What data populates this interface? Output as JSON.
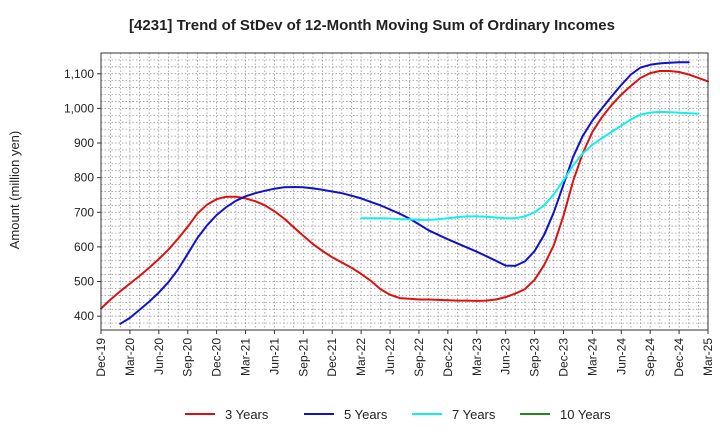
{
  "chart_data": {
    "type": "line",
    "title": "[4231]  Trend of StDev of 12-Month Moving Sum of Ordinary Incomes",
    "xlabel": "",
    "ylabel": "Amount (million yen)",
    "ylim": [
      360,
      1160
    ],
    "yticks": [
      400,
      500,
      600,
      700,
      800,
      900,
      1000,
      1100
    ],
    "ytick_labels": [
      "400",
      "500",
      "600",
      "700",
      "800",
      "900",
      "1,000",
      "1,100"
    ],
    "xticks": [
      "Dec-19",
      "Mar-20",
      "Jun-20",
      "Sep-20",
      "Dec-20",
      "Mar-21",
      "Jun-21",
      "Sep-21",
      "Dec-21",
      "Mar-22",
      "Jun-22",
      "Sep-22",
      "Dec-22",
      "Mar-23",
      "Jun-23",
      "Sep-23",
      "Dec-23",
      "Mar-24",
      "Jun-24",
      "Sep-24",
      "Dec-24",
      "Mar-25"
    ],
    "x_count_months": 63,
    "grid": true,
    "legend_position": "bottom",
    "series": [
      {
        "name": "3 Years",
        "color": "#dd1111",
        "points": [
          [
            0,
            422
          ],
          [
            1,
            448
          ],
          [
            2,
            472
          ],
          [
            3,
            494
          ],
          [
            4,
            516
          ],
          [
            5,
            540
          ],
          [
            6,
            565
          ],
          [
            7,
            592
          ],
          [
            8,
            624
          ],
          [
            9,
            658
          ],
          [
            10,
            696
          ],
          [
            11,
            722
          ],
          [
            12,
            738
          ],
          [
            13,
            745
          ],
          [
            14,
            745
          ],
          [
            15,
            740
          ],
          [
            16,
            732
          ],
          [
            17,
            720
          ],
          [
            18,
            703
          ],
          [
            19,
            682
          ],
          [
            20,
            657
          ],
          [
            21,
            632
          ],
          [
            22,
            608
          ],
          [
            23,
            588
          ],
          [
            24,
            570
          ],
          [
            25,
            555
          ],
          [
            26,
            540
          ],
          [
            27,
            522
          ],
          [
            28,
            502
          ],
          [
            29,
            478
          ],
          [
            30,
            462
          ],
          [
            31,
            452
          ],
          [
            32,
            450
          ],
          [
            33,
            448
          ],
          [
            34,
            448
          ],
          [
            35,
            447
          ],
          [
            36,
            446
          ],
          [
            37,
            445
          ],
          [
            38,
            445
          ],
          [
            39,
            444
          ],
          [
            40,
            445
          ],
          [
            41,
            448
          ],
          [
            42,
            455
          ],
          [
            43,
            465
          ],
          [
            44,
            478
          ],
          [
            45,
            505
          ],
          [
            46,
            548
          ],
          [
            47,
            605
          ],
          [
            48,
            690
          ],
          [
            49,
            790
          ],
          [
            50,
            870
          ],
          [
            51,
            932
          ],
          [
            52,
            975
          ],
          [
            53,
            1010
          ],
          [
            54,
            1040
          ],
          [
            55,
            1065
          ],
          [
            56,
            1088
          ],
          [
            57,
            1102
          ],
          [
            58,
            1108
          ],
          [
            59,
            1108
          ],
          [
            60,
            1105
          ],
          [
            61,
            1098
          ],
          [
            62,
            1088
          ],
          [
            63,
            1078
          ]
        ]
      },
      {
        "name": "5 Years",
        "color": "#1111cc",
        "points": [
          [
            2,
            378
          ],
          [
            3,
            395
          ],
          [
            4,
            418
          ],
          [
            5,
            442
          ],
          [
            6,
            468
          ],
          [
            7,
            498
          ],
          [
            8,
            535
          ],
          [
            9,
            580
          ],
          [
            10,
            625
          ],
          [
            11,
            662
          ],
          [
            12,
            692
          ],
          [
            13,
            715
          ],
          [
            14,
            733
          ],
          [
            15,
            746
          ],
          [
            16,
            755
          ],
          [
            17,
            762
          ],
          [
            18,
            768
          ],
          [
            19,
            772
          ],
          [
            20,
            773
          ],
          [
            21,
            772
          ],
          [
            22,
            769
          ],
          [
            23,
            765
          ],
          [
            24,
            760
          ],
          [
            25,
            755
          ],
          [
            26,
            748
          ],
          [
            27,
            740
          ],
          [
            28,
            730
          ],
          [
            29,
            720
          ],
          [
            30,
            708
          ],
          [
            31,
            696
          ],
          [
            32,
            682
          ],
          [
            33,
            665
          ],
          [
            34,
            648
          ],
          [
            35,
            635
          ],
          [
            36,
            622
          ],
          [
            37,
            610
          ],
          [
            38,
            598
          ],
          [
            39,
            586
          ],
          [
            40,
            573
          ],
          [
            41,
            560
          ],
          [
            42,
            546
          ],
          [
            43,
            545
          ],
          [
            44,
            558
          ],
          [
            45,
            588
          ],
          [
            46,
            635
          ],
          [
            47,
            700
          ],
          [
            48,
            780
          ],
          [
            49,
            860
          ],
          [
            50,
            920
          ],
          [
            51,
            965
          ],
          [
            52,
            1000
          ],
          [
            53,
            1035
          ],
          [
            54,
            1068
          ],
          [
            55,
            1098
          ],
          [
            56,
            1118
          ],
          [
            57,
            1126
          ],
          [
            58,
            1130
          ],
          [
            59,
            1132
          ],
          [
            60,
            1133
          ],
          [
            61,
            1133
          ]
        ]
      },
      {
        "name": "7 Years",
        "color": "#11eeee",
        "points": [
          [
            27,
            683
          ],
          [
            28,
            683
          ],
          [
            29,
            683
          ],
          [
            30,
            682
          ],
          [
            31,
            680
          ],
          [
            32,
            680
          ],
          [
            33,
            678
          ],
          [
            34,
            678
          ],
          [
            35,
            680
          ],
          [
            36,
            683
          ],
          [
            37,
            686
          ],
          [
            38,
            688
          ],
          [
            39,
            688
          ],
          [
            40,
            687
          ],
          [
            41,
            685
          ],
          [
            42,
            683
          ],
          [
            43,
            683
          ],
          [
            44,
            688
          ],
          [
            45,
            700
          ],
          [
            46,
            720
          ],
          [
            47,
            752
          ],
          [
            48,
            792
          ],
          [
            49,
            835
          ],
          [
            50,
            870
          ],
          [
            51,
            895
          ],
          [
            52,
            914
          ],
          [
            53,
            932
          ],
          [
            54,
            950
          ],
          [
            55,
            968
          ],
          [
            56,
            982
          ],
          [
            57,
            988
          ],
          [
            58,
            990
          ],
          [
            59,
            989
          ],
          [
            60,
            988
          ],
          [
            61,
            986
          ],
          [
            62,
            985
          ]
        ]
      },
      {
        "name": "10 Years",
        "color": "#228822",
        "points": []
      }
    ]
  }
}
